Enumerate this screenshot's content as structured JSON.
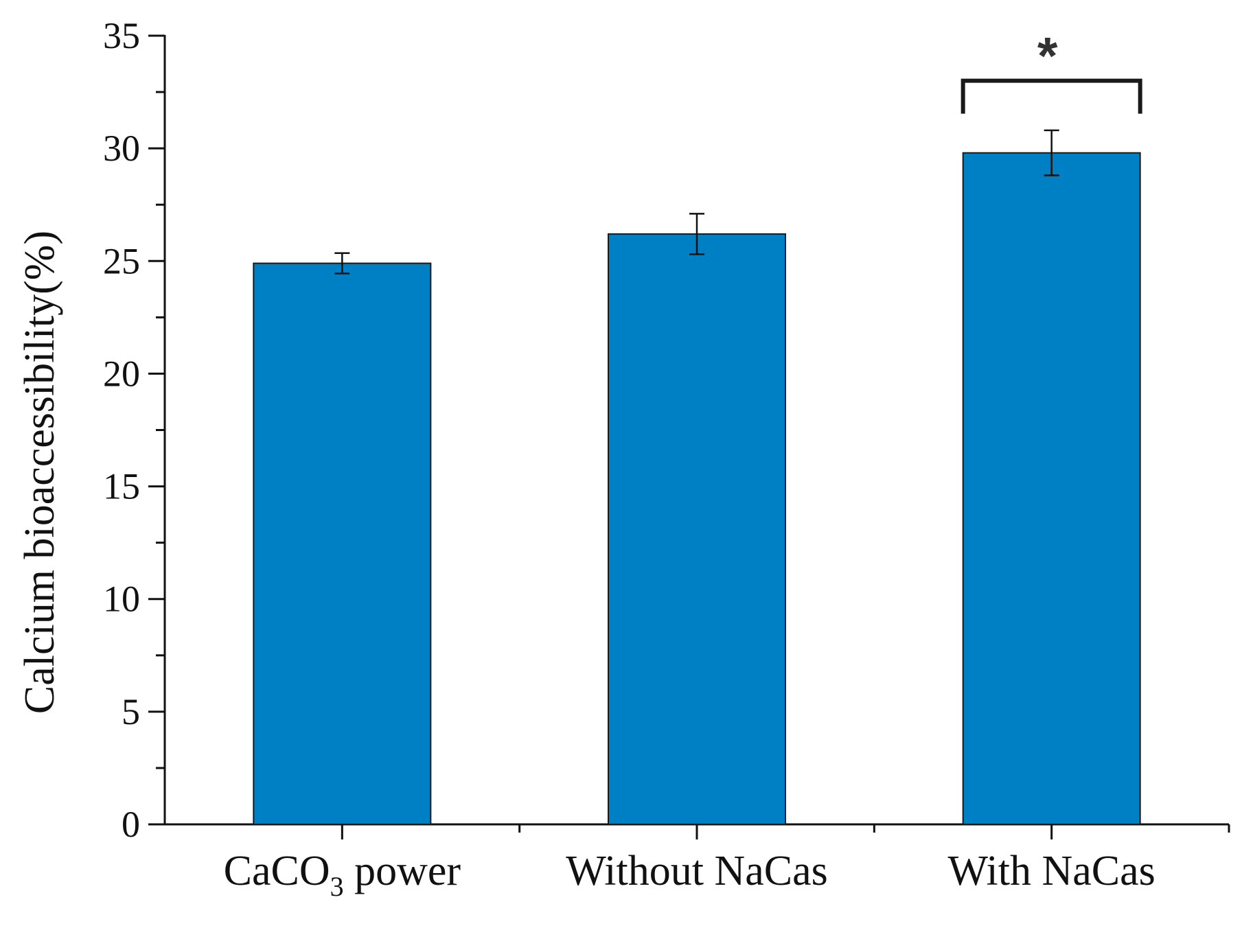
{
  "chart_data": {
    "type": "bar",
    "categories": [
      {
        "main": "CaCO",
        "sub": "3",
        "tail": " power"
      },
      {
        "main": "Without NaCas",
        "sub": "",
        "tail": ""
      },
      {
        "main": "With NaCas",
        "sub": "",
        "tail": ""
      }
    ],
    "values": [
      24.9,
      26.2,
      29.8
    ],
    "errors": [
      0.45,
      0.9,
      1.0
    ],
    "ylabel": "Calcium bioaccessibility(%)",
    "xlabel": "",
    "ylim": [
      0,
      35
    ],
    "yticks": [
      0,
      5,
      10,
      15,
      20,
      25,
      30,
      35
    ],
    "bar_color": "#0080C4",
    "bar_edge_color": "#1a1a1a",
    "grid": false,
    "annotations": [
      {
        "text": "*",
        "category_index": 2,
        "bracket": true,
        "level": 33.0
      }
    ]
  }
}
